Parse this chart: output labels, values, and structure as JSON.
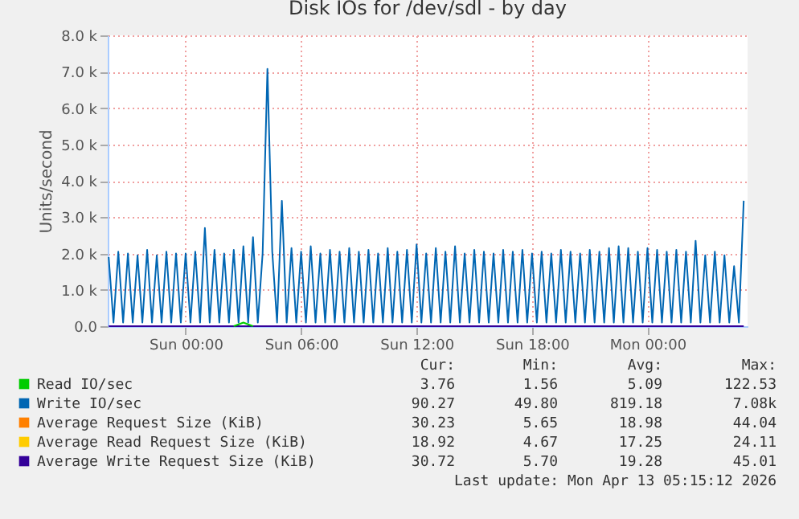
{
  "chart_data": {
    "type": "line",
    "title": "Disk IOs for /dev/sdl - by day",
    "ylabel": "Units/second",
    "xlim": [
      "2026-04-11T19:57",
      "2026-04-13T05:12"
    ],
    "xticks": [
      {
        "value": "2026-04-12T00:00",
        "label": "Sun 00:00"
      },
      {
        "value": "2026-04-12T06:00",
        "label": "Sun 06:00"
      },
      {
        "value": "2026-04-12T12:00",
        "label": "Sun 12:00"
      },
      {
        "value": "2026-04-12T18:00",
        "label": "Sun 18:00"
      },
      {
        "value": "2026-04-13T00:00",
        "label": "Mon 00:00"
      }
    ],
    "ylim": [
      0,
      8000
    ],
    "yticks": [
      {
        "value": 0,
        "label": "0.0"
      },
      {
        "value": 1000,
        "label": "1.0 k"
      },
      {
        "value": 2000,
        "label": "2.0 k"
      },
      {
        "value": 3000,
        "label": "3.0 k"
      },
      {
        "value": 4000,
        "label": "4.0 k"
      },
      {
        "value": 5000,
        "label": "5.0 k"
      },
      {
        "value": 6000,
        "label": "6.0 k"
      },
      {
        "value": 7000,
        "label": "7.0 k"
      },
      {
        "value": 8000,
        "label": "8.0 k"
      }
    ],
    "grid": true,
    "legend": "bottom",
    "series": [
      {
        "name": "Read IO/sec",
        "color": "#00cc00",
        "x": [
          "2026-04-12T02:30",
          "2026-04-12T03:00",
          "2026-04-12T03:30"
        ],
        "values": [
          0,
          100,
          0
        ]
      },
      {
        "name": "Write IO/sec",
        "color": "#0066b3",
        "x": [
          "2026-04-11T20:00",
          "2026-04-11T20:15",
          "2026-04-11T20:30",
          "2026-04-11T20:45",
          "2026-04-11T21:00",
          "2026-04-11T21:15",
          "2026-04-11T21:30",
          "2026-04-11T21:45",
          "2026-04-11T22:00",
          "2026-04-11T22:15",
          "2026-04-11T22:30",
          "2026-04-11T22:45",
          "2026-04-11T23:00",
          "2026-04-11T23:15",
          "2026-04-11T23:30",
          "2026-04-11T23:45",
          "2026-04-12T00:00",
          "2026-04-12T00:15",
          "2026-04-12T00:30",
          "2026-04-12T00:45",
          "2026-04-12T01:00",
          "2026-04-12T01:15",
          "2026-04-12T01:30",
          "2026-04-12T01:45",
          "2026-04-12T02:00",
          "2026-04-12T02:15",
          "2026-04-12T02:30",
          "2026-04-12T02:45",
          "2026-04-12T03:00",
          "2026-04-12T03:15",
          "2026-04-12T03:30",
          "2026-04-12T03:45",
          "2026-04-12T04:00",
          "2026-04-12T04:15",
          "2026-04-12T04:30",
          "2026-04-12T04:45",
          "2026-04-12T05:00",
          "2026-04-12T05:15",
          "2026-04-12T05:30",
          "2026-04-12T05:45",
          "2026-04-12T06:00",
          "2026-04-12T06:15",
          "2026-04-12T06:30",
          "2026-04-12T06:45",
          "2026-04-12T07:00",
          "2026-04-12T07:15",
          "2026-04-12T07:30",
          "2026-04-12T07:45",
          "2026-04-12T08:00",
          "2026-04-12T08:15",
          "2026-04-12T08:30",
          "2026-04-12T08:45",
          "2026-04-12T09:00",
          "2026-04-12T09:15",
          "2026-04-12T09:30",
          "2026-04-12T09:45",
          "2026-04-12T10:00",
          "2026-04-12T10:15",
          "2026-04-12T10:30",
          "2026-04-12T10:45",
          "2026-04-12T11:00",
          "2026-04-12T11:15",
          "2026-04-12T11:30",
          "2026-04-12T11:45",
          "2026-04-12T12:00",
          "2026-04-12T12:15",
          "2026-04-12T12:30",
          "2026-04-12T12:45",
          "2026-04-12T13:00",
          "2026-04-12T13:15",
          "2026-04-12T13:30",
          "2026-04-12T13:45",
          "2026-04-12T14:00",
          "2026-04-12T14:15",
          "2026-04-12T14:30",
          "2026-04-12T14:45",
          "2026-04-12T15:00",
          "2026-04-12T15:15",
          "2026-04-12T15:30",
          "2026-04-12T15:45",
          "2026-04-12T16:00",
          "2026-04-12T16:15",
          "2026-04-12T16:30",
          "2026-04-12T16:45",
          "2026-04-12T17:00",
          "2026-04-12T17:15",
          "2026-04-12T17:30",
          "2026-04-12T17:45",
          "2026-04-12T18:00",
          "2026-04-12T18:15",
          "2026-04-12T18:30",
          "2026-04-12T18:45",
          "2026-04-12T19:00",
          "2026-04-12T19:15",
          "2026-04-12T19:30",
          "2026-04-12T19:45",
          "2026-04-12T20:00",
          "2026-04-12T20:15",
          "2026-04-12T20:30",
          "2026-04-12T20:45",
          "2026-04-12T21:00",
          "2026-04-12T21:15",
          "2026-04-12T21:30",
          "2026-04-12T21:45",
          "2026-04-12T22:00",
          "2026-04-12T22:15",
          "2026-04-12T22:30",
          "2026-04-12T22:45",
          "2026-04-12T23:00",
          "2026-04-12T23:15",
          "2026-04-12T23:30",
          "2026-04-12T23:45",
          "2026-04-13T00:00",
          "2026-04-13T00:15",
          "2026-04-13T00:30",
          "2026-04-13T00:45",
          "2026-04-13T01:00",
          "2026-04-13T01:15",
          "2026-04-13T01:30",
          "2026-04-13T01:45",
          "2026-04-13T02:00",
          "2026-04-13T02:15",
          "2026-04-13T02:30",
          "2026-04-13T02:45",
          "2026-04-13T03:00",
          "2026-04-13T03:15",
          "2026-04-13T03:30",
          "2026-04-13T03:45",
          "2026-04-13T04:00",
          "2026-04-13T04:15",
          "2026-04-13T04:30",
          "2026-04-13T04:45",
          "2026-04-13T05:00"
        ],
        "values": [
          1900,
          100,
          2050,
          100,
          2000,
          100,
          1950,
          100,
          2100,
          100,
          1950,
          100,
          2050,
          100,
          2000,
          100,
          2000,
          100,
          2050,
          100,
          2700,
          100,
          2100,
          100,
          2000,
          100,
          2100,
          100,
          2200,
          100,
          2450,
          100,
          2000,
          7080,
          2050,
          100,
          3450,
          100,
          2150,
          100,
          2050,
          100,
          2200,
          100,
          2000,
          100,
          2100,
          100,
          2050,
          100,
          2150,
          100,
          2050,
          100,
          2100,
          100,
          2000,
          100,
          2150,
          100,
          2050,
          100,
          2100,
          100,
          2250,
          100,
          2000,
          100,
          2150,
          100,
          2050,
          100,
          2200,
          100,
          2000,
          100,
          2100,
          100,
          2050,
          100,
          2000,
          100,
          2100,
          100,
          2050,
          100,
          2100,
          100,
          2000,
          100,
          2050,
          100,
          2000,
          100,
          2100,
          100,
          2050,
          100,
          2000,
          100,
          2100,
          100,
          2050,
          100,
          2150,
          100,
          2200,
          100,
          2150,
          100,
          2050,
          100,
          2150,
          100,
          2100,
          100,
          2050,
          100,
          2100,
          100,
          2050,
          100,
          2350,
          100,
          1950,
          100,
          2050,
          100,
          1950,
          100,
          1650,
          100,
          3450
        ]
      },
      {
        "name": "Average Request Size (KiB)",
        "color": "#ff8000"
      },
      {
        "name": "Average Read Request Size (KiB)",
        "color": "#ffcc00"
      },
      {
        "name": "Average Write Request Size (KiB)",
        "color": "#330099",
        "x": [
          "2026-04-11T20:00",
          "2026-04-12T12:00",
          "2026-04-13T05:00"
        ],
        "values": [
          0,
          0,
          0
        ]
      }
    ],
    "annotations": [
      "Cur:",
      "Min:",
      "Avg:",
      "Max:",
      "3.76",
      "1.56",
      "5.09",
      "122.53",
      "90.27",
      "49.80",
      "819.18",
      "7.08k",
      "30.23",
      "5.65",
      "18.98",
      "44.04",
      "18.92",
      "4.67",
      "17.25",
      "24.11",
      "30.72",
      "5.70",
      "19.28",
      "45.01",
      "Last update: Mon Apr 13 05:15:12 2026"
    ]
  }
}
